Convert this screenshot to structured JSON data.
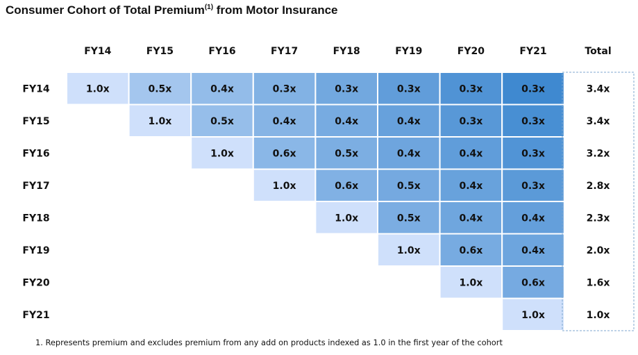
{
  "title": "Consumer Cohort of Total Premium",
  "title_superscript": "(1)",
  "title_suffix": " from Motor Insurance",
  "footnote": "1.  Represents premium and excludes premium from any add on products indexed as 1.0 in the first year of the cohort",
  "chart_data": {
    "type": "heatmap",
    "column_labels": [
      "FY14",
      "FY15",
      "FY16",
      "FY17",
      "FY18",
      "FY19",
      "FY20",
      "FY21"
    ],
    "row_labels": [
      "FY14",
      "FY15",
      "FY16",
      "FY17",
      "FY18",
      "FY19",
      "FY20",
      "FY21"
    ],
    "total_label": "Total",
    "cells": [
      [
        "1.0x",
        "0.5x",
        "0.4x",
        "0.3x",
        "0.3x",
        "0.3x",
        "0.3x",
        "0.3x"
      ],
      [
        null,
        "1.0x",
        "0.5x",
        "0.4x",
        "0.4x",
        "0.4x",
        "0.3x",
        "0.3x"
      ],
      [
        null,
        null,
        "1.0x",
        "0.6x",
        "0.5x",
        "0.4x",
        "0.4x",
        "0.3x"
      ],
      [
        null,
        null,
        null,
        "1.0x",
        "0.6x",
        "0.5x",
        "0.4x",
        "0.3x"
      ],
      [
        null,
        null,
        null,
        null,
        "1.0x",
        "0.5x",
        "0.4x",
        "0.4x"
      ],
      [
        null,
        null,
        null,
        null,
        null,
        "1.0x",
        "0.6x",
        "0.4x"
      ],
      [
        null,
        null,
        null,
        null,
        null,
        null,
        "1.0x",
        "0.6x"
      ],
      [
        null,
        null,
        null,
        null,
        null,
        null,
        null,
        "1.0x"
      ]
    ],
    "totals": [
      "3.4x",
      "3.4x",
      "3.2x",
      "2.8x",
      "2.3x",
      "2.0x",
      "1.6x",
      "1.0x"
    ],
    "colors": {
      "light": "#cfe0fb",
      "dark": "#3f89d0",
      "gap": "#ffffff",
      "total_border": "#7fa7cf"
    }
  }
}
